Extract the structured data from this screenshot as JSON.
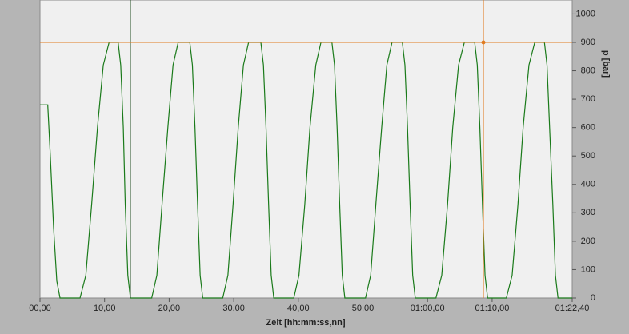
{
  "chart_data": {
    "type": "line",
    "x_label": "Zeit [hh:mm:ss,nn]",
    "y_label": "p [bar]",
    "xlim": [
      0,
      82.4
    ],
    "ylim": [
      0,
      1049
    ],
    "xticks": [
      {
        "value": 0,
        "label": "00,00"
      },
      {
        "value": 10,
        "label": "10,00"
      },
      {
        "value": 20,
        "label": "20,00"
      },
      {
        "value": 30,
        "label": "30,00"
      },
      {
        "value": 40,
        "label": "40,00"
      },
      {
        "value": 50,
        "label": "50,00"
      },
      {
        "value": 60,
        "label": "01:00,00"
      },
      {
        "value": 70,
        "label": "01:10,00"
      },
      {
        "value": 82.4,
        "label": "01:22,40"
      }
    ],
    "yticks": [
      0,
      100,
      200,
      300,
      400,
      500,
      600,
      700,
      800,
      900,
      1000
    ],
    "color": "#1a7a1a",
    "x": [
      0,
      1.2,
      1.6,
      2.1,
      2.6,
      3.1,
      6.2,
      7.1,
      8.0,
      8.9,
      9.8,
      10.7,
      12.1,
      12.5,
      12.9,
      13.2,
      13.6,
      14.0,
      17.3,
      18.1,
      18.9,
      19.8,
      20.6,
      21.4,
      23.2,
      23.6,
      24.0,
      24.4,
      24.8,
      25.2,
      28.3,
      29.1,
      29.9,
      30.7,
      31.5,
      32.3,
      34.2,
      34.6,
      35.0,
      35.4,
      35.8,
      36.2,
      39.3,
      40.1,
      41.0,
      41.8,
      42.7,
      43.5,
      45.2,
      45.6,
      46.0,
      46.4,
      46.8,
      47.2,
      50.4,
      51.2,
      52.0,
      52.9,
      53.7,
      54.5,
      56.1,
      56.5,
      56.9,
      57.3,
      57.7,
      58.1,
      61.3,
      62.2,
      63.1,
      63.9,
      64.8,
      65.7,
      67.3,
      67.7,
      68.1,
      68.5,
      68.9,
      69.3,
      72.2,
      73.1,
      74.0,
      74.8,
      75.7,
      76.6,
      78.1,
      78.5,
      78.9,
      79.4,
      79.8,
      80.2,
      82.4
    ],
    "values": [
      680,
      680,
      500,
      250,
      60,
      0,
      0,
      80,
      330,
      600,
      820,
      900,
      900,
      820,
      600,
      330,
      80,
      0,
      0,
      80,
      330,
      600,
      820,
      900,
      900,
      820,
      600,
      330,
      80,
      0,
      0,
      80,
      330,
      600,
      820,
      900,
      900,
      820,
      600,
      330,
      80,
      0,
      0,
      80,
      330,
      600,
      820,
      900,
      900,
      820,
      600,
      330,
      80,
      0,
      0,
      80,
      330,
      600,
      820,
      900,
      900,
      820,
      600,
      330,
      80,
      0,
      0,
      80,
      330,
      600,
      820,
      900,
      900,
      820,
      600,
      330,
      80,
      0,
      0,
      80,
      330,
      600,
      820,
      900,
      900,
      820,
      600,
      330,
      80,
      0,
      0
    ],
    "cursors": [
      {
        "axis": "x",
        "value": 14.0,
        "color": "#1e4a1e"
      },
      {
        "axis": "x",
        "value": 68.65,
        "color": "#e07b20"
      },
      {
        "axis": "y",
        "value": 900,
        "color": "#e07b20"
      }
    ],
    "cursor_point": {
      "x": 68.65,
      "y": 900,
      "color": "#e07b20"
    }
  }
}
